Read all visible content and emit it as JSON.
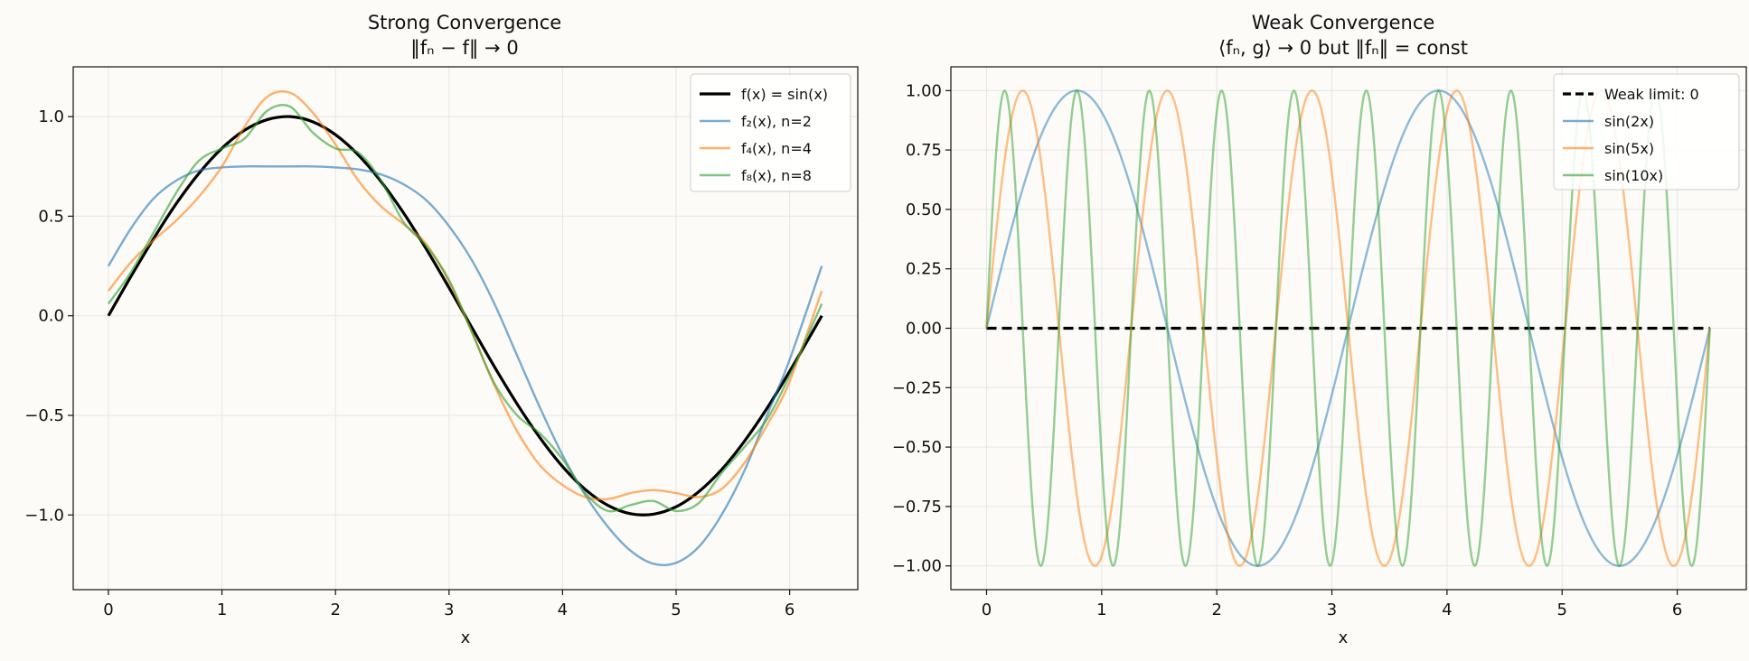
{
  "figure": {
    "background": "#fcfbf8"
  },
  "chart_data": [
    {
      "type": "line",
      "title": "Strong Convergence",
      "subtitle": "‖fₙ − f‖ → 0",
      "xlabel": "x",
      "ylabel": "",
      "xlim": [
        -0.31,
        6.6
      ],
      "ylim": [
        -1.375,
        1.25
      ],
      "xticks": [
        0,
        1,
        2,
        3,
        4,
        5,
        6
      ],
      "xtick_labels": [
        "0",
        "1",
        "2",
        "3",
        "4",
        "5",
        "6"
      ],
      "yticks": [
        -1.0,
        -0.5,
        0.0,
        0.5,
        1.0
      ],
      "ytick_labels": [
        "−1.0",
        "−0.5",
        "0.0",
        "0.5",
        "1.0"
      ],
      "grid": true,
      "legend_position": "top-right",
      "x": [
        0,
        0.2,
        0.4,
        0.6,
        0.8,
        1.0,
        1.2,
        1.4,
        1.6,
        1.8,
        2.0,
        2.2,
        2.4,
        2.6,
        2.8,
        3.0,
        3.2,
        3.4,
        3.6,
        3.8,
        4.0,
        4.2,
        4.4,
        4.6,
        4.8,
        5.0,
        5.2,
        5.4,
        5.6,
        5.8,
        6.0,
        6.283
      ],
      "series": [
        {
          "name": "f(x) = sin(x)",
          "color": "#000000",
          "values": [
            0.0,
            0.199,
            0.389,
            0.565,
            0.717,
            0.841,
            0.932,
            0.985,
            1.0,
            0.974,
            0.909,
            0.808,
            0.675,
            0.516,
            0.335,
            0.141,
            -0.058,
            -0.256,
            -0.443,
            -0.612,
            -0.757,
            -0.872,
            -0.952,
            -0.994,
            -0.996,
            -0.959,
            -0.883,
            -0.773,
            -0.631,
            -0.465,
            -0.279,
            0.0
          ]
        },
        {
          "name": "f₂(x), n=2",
          "color": "#1f77b4",
          "values": [
            0.25,
            0.44,
            0.59,
            0.68,
            0.73,
            0.745,
            0.75,
            0.75,
            0.75,
            0.75,
            0.745,
            0.735,
            0.71,
            0.66,
            0.58,
            0.45,
            0.28,
            0.06,
            -0.2,
            -0.46,
            -0.7,
            -0.9,
            -1.06,
            -1.18,
            -1.245,
            -1.24,
            -1.16,
            -1.0,
            -0.78,
            -0.5,
            -0.22,
            0.25
          ]
        },
        {
          "name": "f₄(x), n=4",
          "color": "#ff7f0e",
          "values": [
            0.125,
            0.27,
            0.38,
            0.48,
            0.6,
            0.75,
            0.95,
            1.1,
            1.12,
            1.02,
            0.86,
            0.68,
            0.55,
            0.46,
            0.36,
            0.17,
            -0.08,
            -0.35,
            -0.58,
            -0.75,
            -0.85,
            -0.91,
            -0.92,
            -0.89,
            -0.875,
            -0.89,
            -0.91,
            -0.87,
            -0.74,
            -0.55,
            -0.33,
            0.125
          ]
        },
        {
          "name": "f₈(x), n=8",
          "color": "#2ca02c",
          "values": [
            0.06,
            0.22,
            0.42,
            0.62,
            0.78,
            0.84,
            0.89,
            1.03,
            1.05,
            0.92,
            0.84,
            0.82,
            0.68,
            0.47,
            0.35,
            0.18,
            -0.08,
            -0.34,
            -0.5,
            -0.59,
            -0.72,
            -0.89,
            -0.98,
            -0.95,
            -0.93,
            -0.98,
            -0.94,
            -0.79,
            -0.66,
            -0.52,
            -0.3,
            0.06
          ]
        }
      ]
    },
    {
      "type": "line",
      "title": "Weak Convergence",
      "subtitle": "⟨fₙ, g⟩ → 0 but ‖fₙ‖ = const",
      "xlabel": "x",
      "ylabel": "",
      "xlim": [
        -0.31,
        6.6
      ],
      "ylim": [
        -1.1,
        1.1
      ],
      "xticks": [
        0,
        1,
        2,
        3,
        4,
        5,
        6
      ],
      "xtick_labels": [
        "0",
        "1",
        "2",
        "3",
        "4",
        "5",
        "6"
      ],
      "yticks": [
        -1.0,
        -0.75,
        -0.5,
        -0.25,
        0.0,
        0.25,
        0.5,
        0.75,
        1.0
      ],
      "ytick_labels": [
        "−1.00",
        "−0.75",
        "−0.50",
        "−0.25",
        "0.00",
        "0.25",
        "0.50",
        "0.75",
        "1.00"
      ],
      "grid": true,
      "legend_position": "top-right",
      "series": [
        {
          "name": "Weak limit: 0",
          "color": "#000000",
          "dashed": true,
          "function": "zero"
        },
        {
          "name": "sin(2x)",
          "color": "#1f77b4",
          "frequency": 2
        },
        {
          "name": "sin(5x)",
          "color": "#ff7f0e",
          "frequency": 5
        },
        {
          "name": "sin(10x)",
          "color": "#2ca02c",
          "frequency": 10
        }
      ]
    }
  ]
}
